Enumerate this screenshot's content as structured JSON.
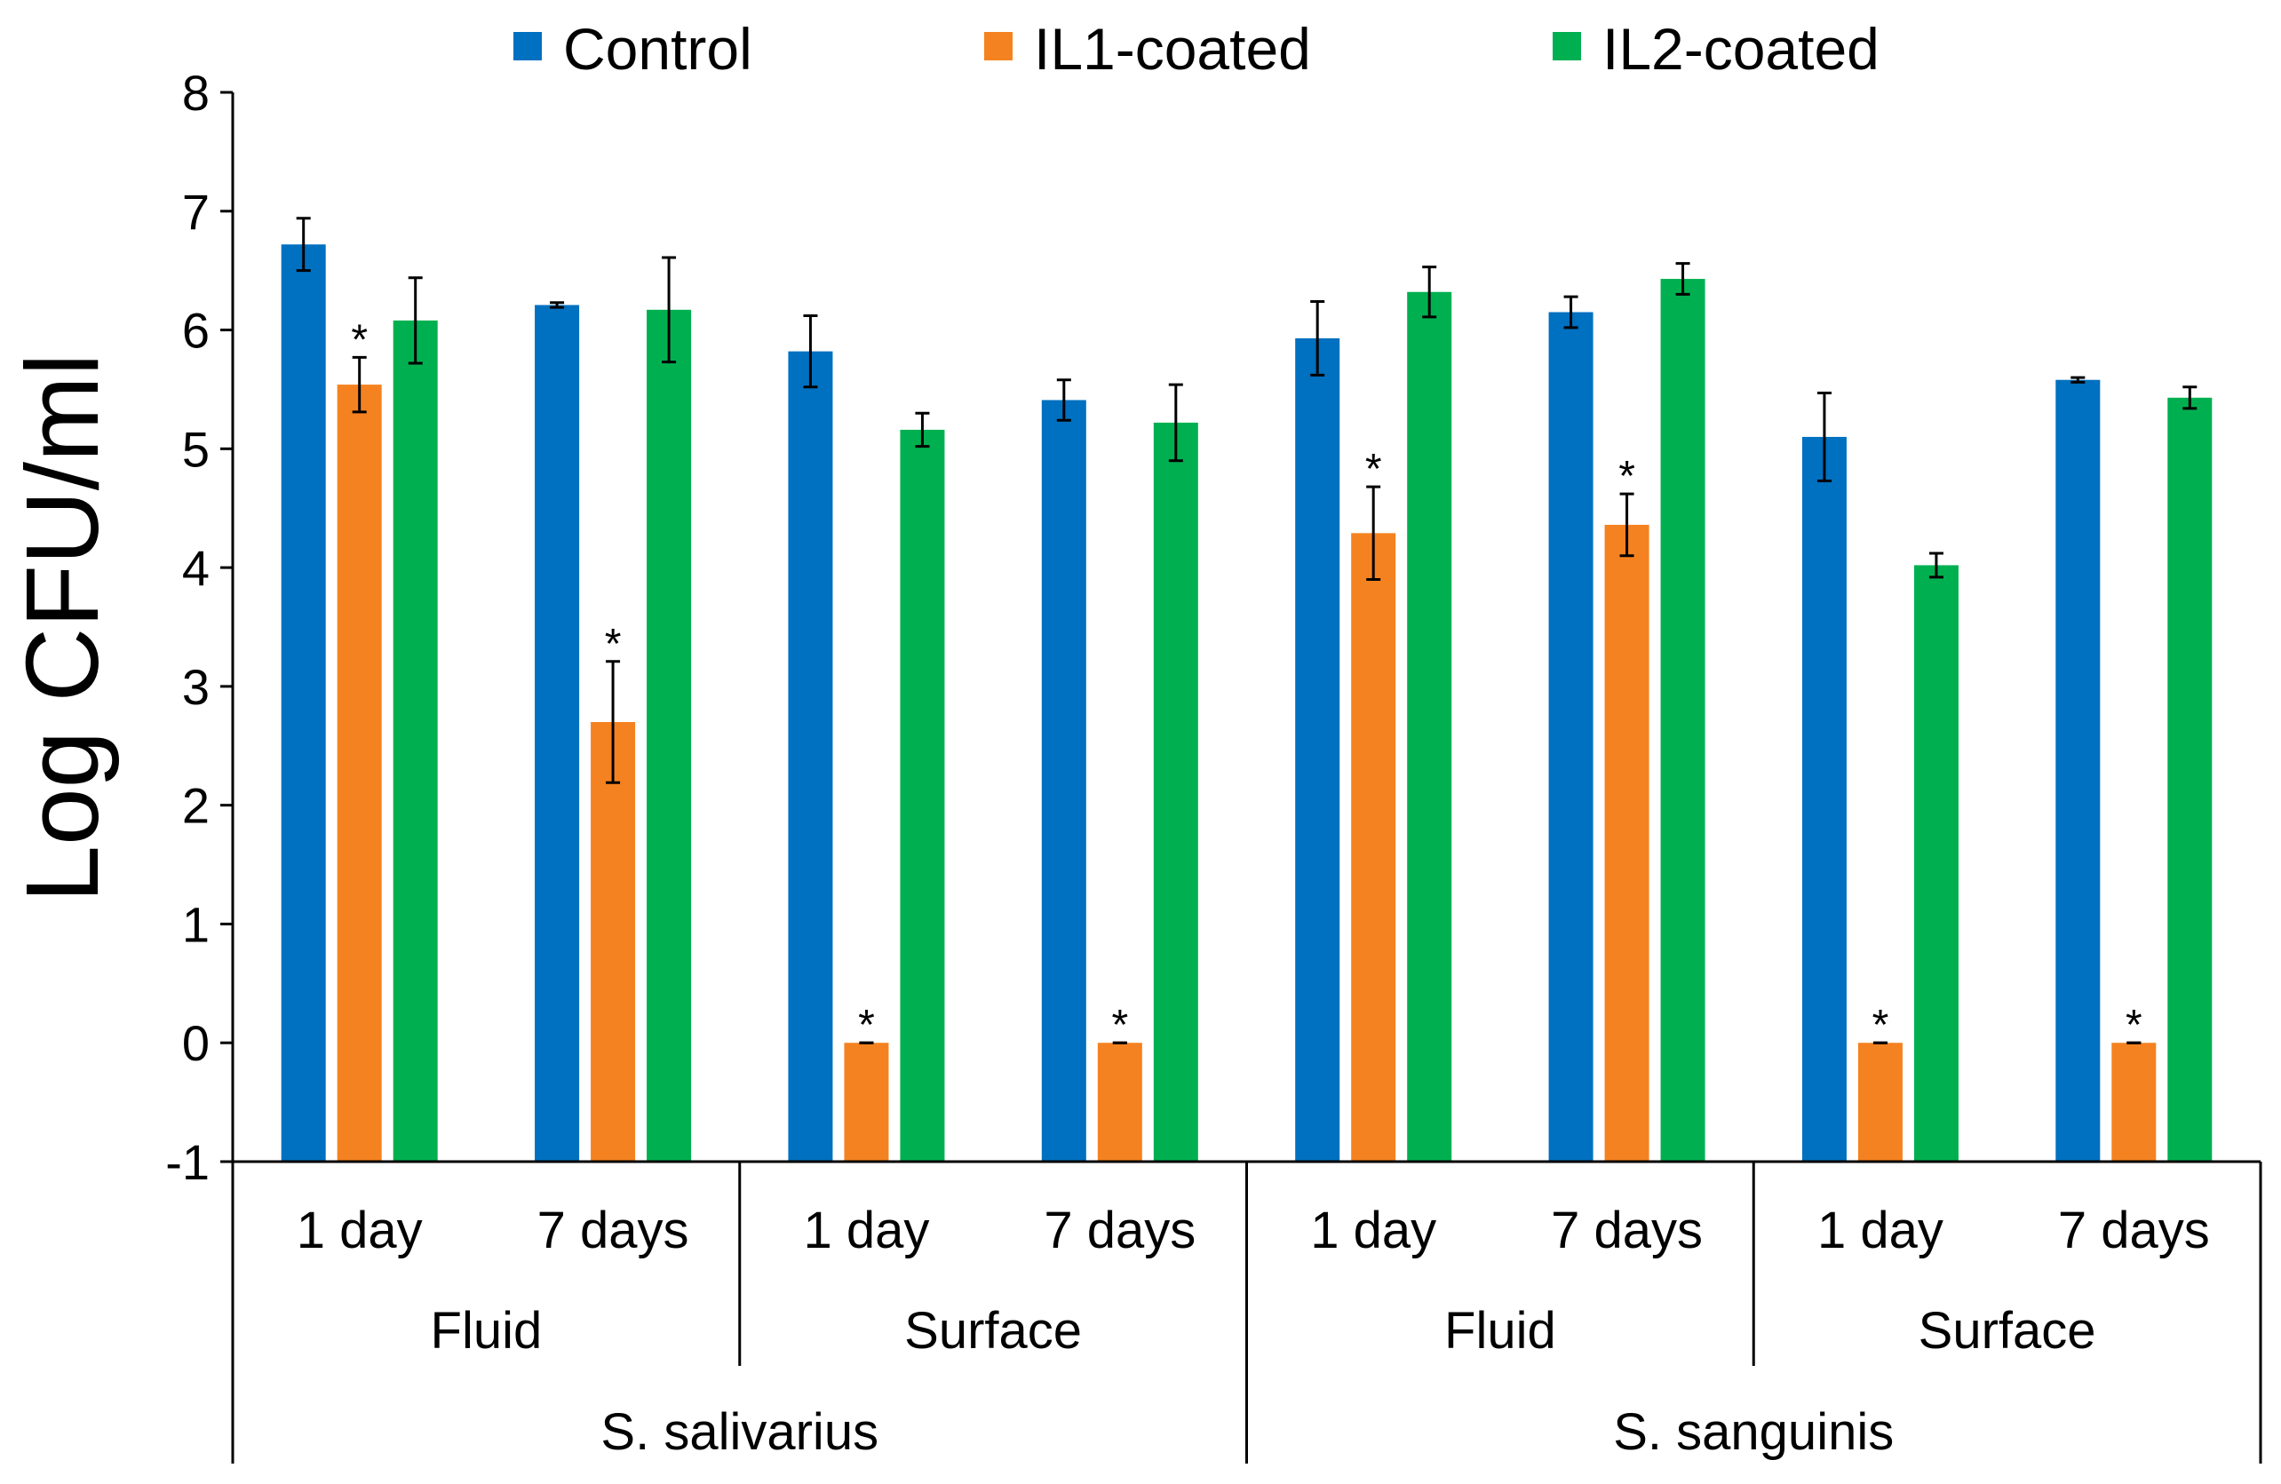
{
  "chart_data": {
    "type": "bar",
    "title": "",
    "xlabel": "",
    "ylabel": "Log CFU/ml",
    "ylim": [
      -1,
      8
    ],
    "yticks": [
      -1,
      0,
      1,
      2,
      3,
      4,
      5,
      6,
      7,
      8
    ],
    "grid": false,
    "legend_position": "top",
    "categories": [
      "1 day",
      "7 days",
      "1 day",
      "7 days",
      "1 day",
      "7 days",
      "1 day",
      "7 days"
    ],
    "category_groups": [
      {
        "label": "Fluid",
        "span": 2
      },
      {
        "label": "Surface",
        "span": 2
      },
      {
        "label": "Fluid",
        "span": 2
      },
      {
        "label": "Surface",
        "span": 2
      }
    ],
    "outer_groups": [
      {
        "label": "S. salivarius",
        "span": 4
      },
      {
        "label": "S. sanguinis",
        "span": 4
      }
    ],
    "series": [
      {
        "name": "Control",
        "color": "#0070C0",
        "values": [
          6.72,
          6.21,
          5.82,
          5.41,
          5.93,
          6.15,
          5.1,
          5.58
        ],
        "errors": [
          0.22,
          0.02,
          0.3,
          0.17,
          0.31,
          0.13,
          0.37,
          0.02
        ]
      },
      {
        "name": "IL1-coated",
        "color": "#F58220",
        "values": [
          5.54,
          2.7,
          0.0,
          0.0,
          4.29,
          4.36,
          0.0,
          0.0
        ],
        "errors": [
          0.23,
          0.51,
          0.0,
          0.0,
          0.39,
          0.26,
          0.0,
          0.0
        ]
      },
      {
        "name": "IL2-coated",
        "color": "#00B050",
        "values": [
          6.08,
          6.17,
          5.16,
          5.22,
          6.32,
          6.43,
          4.02,
          5.43
        ],
        "errors": [
          0.36,
          0.44,
          0.14,
          0.32,
          0.21,
          0.13,
          0.1,
          0.09
        ]
      }
    ],
    "annotations": [
      {
        "text": "*",
        "series": "IL1-coated",
        "category_index": 0
      },
      {
        "text": "*",
        "series": "IL1-coated",
        "category_index": 1
      },
      {
        "text": "*",
        "series": "IL1-coated",
        "category_index": 2
      },
      {
        "text": "*",
        "series": "IL1-coated",
        "category_index": 3
      },
      {
        "text": "*",
        "series": "IL1-coated",
        "category_index": 4
      },
      {
        "text": "*",
        "series": "IL1-coated",
        "category_index": 5
      },
      {
        "text": "*",
        "series": "IL1-coated",
        "category_index": 6
      },
      {
        "text": "*",
        "series": "IL1-coated",
        "category_index": 7
      }
    ]
  }
}
